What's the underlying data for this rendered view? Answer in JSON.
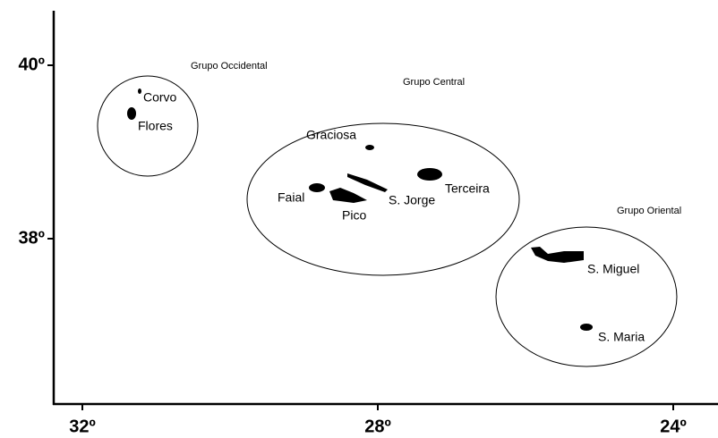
{
  "map": {
    "xticks": [
      {
        "value": 32,
        "label": "32º"
      },
      {
        "value": 28,
        "label": "28º"
      },
      {
        "value": 24,
        "label": "24º"
      }
    ],
    "yticks": [
      {
        "value": 40,
        "label": "40º"
      },
      {
        "value": 38,
        "label": "38º"
      }
    ],
    "groups": [
      "Grupo Occidental",
      "Grupo Central",
      "Grupo Oriental"
    ],
    "islands": [
      "Corvo",
      "Flores",
      "Graciosa",
      "Faial",
      "Pico",
      "S. Jorge",
      "Terceira",
      "S. Miguel",
      "S. Maria"
    ]
  }
}
